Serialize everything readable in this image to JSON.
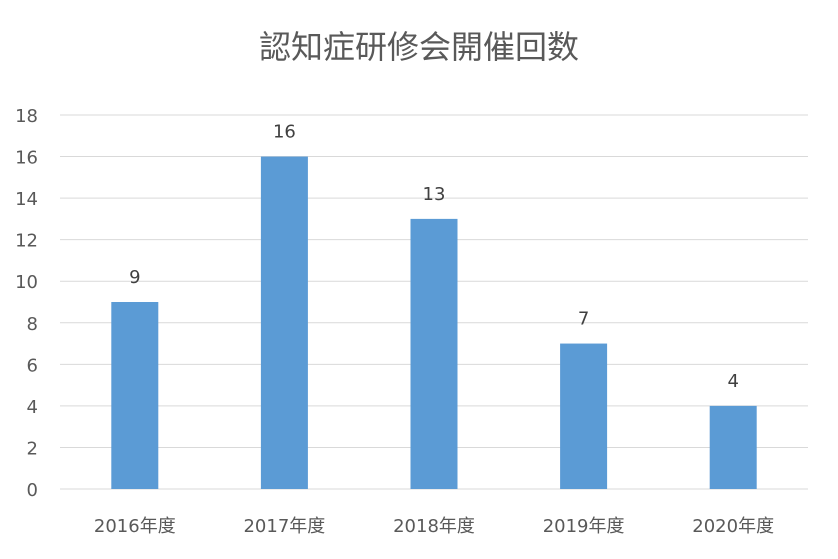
{
  "chart_data": {
    "type": "bar",
    "title": "認知症研修会開催回数",
    "categories": [
      "2016年度",
      "2017年度",
      "2018年度",
      "2019年度",
      "2020年度"
    ],
    "values": [
      9,
      16,
      13,
      7,
      4
    ],
    "data_labels": [
      "9",
      "16",
      "13",
      "7",
      "4"
    ],
    "yticks": [
      0,
      2,
      4,
      6,
      8,
      10,
      12,
      14,
      16,
      18
    ],
    "ylim": [
      0,
      18
    ],
    "xlabel": "",
    "ylabel": "",
    "grid": true,
    "legend": "none",
    "colors": {
      "bar": "#5B9BD5",
      "grid": "#D9D9D9",
      "axis_text": "#595959",
      "label_text": "#404040"
    }
  }
}
